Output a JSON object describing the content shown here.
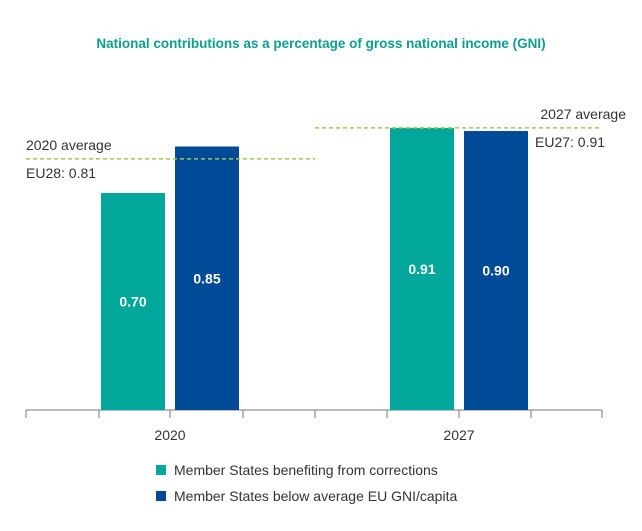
{
  "colors": {
    "title": "#0d9e8f",
    "series1": "#00a79a",
    "series2": "#004a98",
    "average_line": "#9acc55",
    "axis": "#7a7a7a",
    "text": "#333333"
  },
  "chart_data": {
    "type": "bar",
    "title": "National contributions as a percentage of gross national income (GNI)",
    "categories": [
      "2020",
      "2027"
    ],
    "series": [
      {
        "name": "Member States benefiting from corrections",
        "values": [
          0.7,
          0.91
        ],
        "labels": [
          "0.70",
          "0.91"
        ]
      },
      {
        "name": "Member States below average EU GNI/capita",
        "values": [
          0.85,
          0.9
        ],
        "labels": [
          "0.85",
          "0.90"
        ]
      }
    ],
    "ylim": [
      0,
      1.0
    ],
    "grid": false,
    "legend_placement": "bottom",
    "averages": [
      {
        "category": "2020",
        "value": 0.81,
        "label1": "2020 average",
        "label2": "EU28: 0.81"
      },
      {
        "category": "2027",
        "value": 0.91,
        "label1": "2027 average",
        "label2": "EU27: 0.91"
      }
    ]
  }
}
